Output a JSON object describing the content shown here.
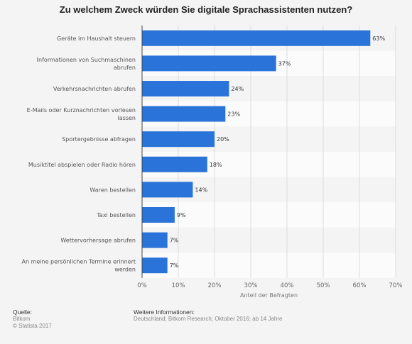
{
  "chart_data": {
    "type": "bar",
    "orientation": "horizontal",
    "title": "Zu welchem Zweck würden Sie digitale Sprachassistenten nutzen?",
    "categories": [
      "Geräte im Haushalt steuern",
      "Informationen von Suchmaschinen abrufen",
      "Verkehrsnachrichten abrufen",
      "E-Mails oder Kurznachrichten vorlesen lassen",
      "Sportergebnisse abfragen",
      "Musiktitel abspielen oder Radio hören",
      "Waren bestellen",
      "Taxi bestellen",
      "Wettervorhersage abrufen",
      "An meine persönlichen Termine erinnert werden"
    ],
    "category_lines": [
      [
        "Geräte im Haushalt steuern"
      ],
      [
        "Informationen von Suchmaschinen",
        "abrufen"
      ],
      [
        "Verkehrsnachrichten abrufen"
      ],
      [
        "E-Mails oder Kurznachrichten vorlesen",
        "lassen"
      ],
      [
        "Sportergebnisse abfragen"
      ],
      [
        "Musiktitel abspielen oder Radio hören"
      ],
      [
        "Waren bestellen"
      ],
      [
        "Taxi bestellen"
      ],
      [
        "Wettervorhersage abrufen"
      ],
      [
        "An meine persönlichen Termine erinnert",
        "werden"
      ]
    ],
    "values": [
      63,
      37,
      24,
      23,
      20,
      18,
      14,
      9,
      7,
      7
    ],
    "value_labels": [
      "63%",
      "37%",
      "24%",
      "23%",
      "20%",
      "18%",
      "14%",
      "9%",
      "7%",
      "7%"
    ],
    "xlabel": "Anteil der Befragten",
    "xlim": [
      0,
      70
    ],
    "xticks": [
      0,
      10,
      20,
      30,
      40,
      50,
      60,
      70
    ],
    "xtick_labels": [
      "0%",
      "10%",
      "20%",
      "30%",
      "40%",
      "50%",
      "60%",
      "70%"
    ],
    "grid": true,
    "bar_color": "#2a74d9"
  },
  "footer": {
    "source_heading": "Quelle:",
    "source_name": "Bitkom",
    "copyright": "© Statista 2017",
    "info_heading": "Weitere Informationen:",
    "info_text": "Deutschland; Bitkom Research; Oktober 2016; ab 14 Jahre"
  }
}
